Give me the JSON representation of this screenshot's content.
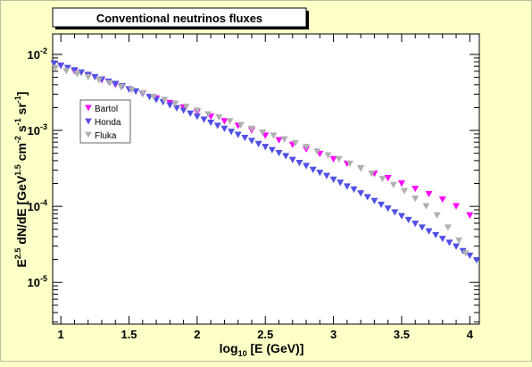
{
  "chart_data": {
    "type": "scatter",
    "title": "Conventional neutrinos fluxes",
    "xlabel": {
      "pre": "log",
      "sub": "10",
      "post": " [E (GeV)]"
    },
    "ylabel": {
      "parts": [
        {
          "t": "E",
          "s": "n"
        },
        {
          "t": "2.5",
          "s": "sup"
        },
        {
          "t": " dN/dE [GeV",
          "s": "n"
        },
        {
          "t": "1.5",
          "s": "sup"
        },
        {
          "t": " cm",
          "s": "n"
        },
        {
          "t": "-2",
          "s": "sup"
        },
        {
          "t": " s",
          "s": "n"
        },
        {
          "t": "-1",
          "s": "sup"
        },
        {
          "t": " sr",
          "s": "n"
        },
        {
          "t": "-1",
          "s": "sup"
        },
        {
          "t": "]",
          "s": "n"
        }
      ]
    },
    "xlim": [
      0.94,
      4.07
    ],
    "ylim_log10": [
      -5.55,
      -1.73
    ],
    "y_scale": "log",
    "xticks": [
      {
        "v": 1,
        "label": "1"
      },
      {
        "v": 1.5,
        "label": "1.5"
      },
      {
        "v": 2,
        "label": "2"
      },
      {
        "v": 2.5,
        "label": "2.5"
      },
      {
        "v": 3,
        "label": "3"
      },
      {
        "v": 3.5,
        "label": "3.5"
      },
      {
        "v": 4,
        "label": "4"
      }
    ],
    "yticks": [
      {
        "exp": -2,
        "base": "10",
        "sup": "-2"
      },
      {
        "exp": -3,
        "base": "10",
        "sup": "-3"
      },
      {
        "exp": -4,
        "base": "10",
        "sup": "-4"
      },
      {
        "exp": -5,
        "base": "10",
        "sup": "-5"
      }
    ],
    "legend_position": "upper-left inside plot",
    "grid": false,
    "marker": "downward-triangle",
    "series": [
      {
        "name": "Bartol",
        "color": "#ff00ff",
        "x": [
          1.0,
          1.1,
          1.2,
          1.3,
          1.4,
          1.5,
          1.6,
          1.7,
          1.8,
          1.9,
          2.0,
          2.1,
          2.2,
          2.3,
          2.4,
          2.5,
          2.6,
          2.7,
          2.8,
          2.9,
          3.0,
          3.1,
          3.2,
          3.3,
          3.4,
          3.5,
          3.6,
          3.7,
          3.8,
          3.9,
          4.0
        ],
        "log10y": [
          -2.15,
          -2.22,
          -2.28,
          -2.34,
          -2.4,
          -2.46,
          -2.52,
          -2.58,
          -2.64,
          -2.7,
          -2.76,
          -2.82,
          -2.88,
          -2.94,
          -3.0,
          -3.07,
          -3.13,
          -3.19,
          -3.25,
          -3.31,
          -3.38,
          -3.44,
          -3.5,
          -3.57,
          -3.63,
          -3.7,
          -3.77,
          -3.84,
          -3.91,
          -4.0,
          -4.12
        ]
      },
      {
        "name": "Honda",
        "color": "#5050e6",
        "x": [
          0.95,
          1.0,
          1.05,
          1.1,
          1.15,
          1.2,
          1.25,
          1.3,
          1.35,
          1.4,
          1.45,
          1.5,
          1.55,
          1.6,
          1.65,
          1.7,
          1.75,
          1.8,
          1.85,
          1.9,
          1.95,
          2.0,
          2.05,
          2.1,
          2.15,
          2.2,
          2.25,
          2.3,
          2.35,
          2.4,
          2.45,
          2.5,
          2.55,
          2.6,
          2.65,
          2.7,
          2.75,
          2.8,
          2.85,
          2.9,
          2.95,
          3.0,
          3.05,
          3.1,
          3.15,
          3.2,
          3.25,
          3.3,
          3.35,
          3.4,
          3.45,
          3.5,
          3.55,
          3.6,
          3.65,
          3.7,
          3.75,
          3.8,
          3.85,
          3.9,
          3.95,
          4.0,
          4.05
        ],
        "log10y": [
          -2.12,
          -2.15,
          -2.18,
          -2.21,
          -2.24,
          -2.27,
          -2.3,
          -2.33,
          -2.36,
          -2.39,
          -2.42,
          -2.46,
          -2.49,
          -2.52,
          -2.56,
          -2.6,
          -2.63,
          -2.67,
          -2.71,
          -2.74,
          -2.78,
          -2.82,
          -2.86,
          -2.9,
          -2.94,
          -2.98,
          -3.02,
          -3.06,
          -3.1,
          -3.14,
          -3.18,
          -3.22,
          -3.26,
          -3.3,
          -3.34,
          -3.39,
          -3.43,
          -3.47,
          -3.52,
          -3.56,
          -3.6,
          -3.65,
          -3.69,
          -3.74,
          -3.78,
          -3.83,
          -3.88,
          -3.93,
          -3.98,
          -4.03,
          -4.08,
          -4.13,
          -4.18,
          -4.23,
          -4.28,
          -4.33,
          -4.38,
          -4.43,
          -4.48,
          -4.53,
          -4.59,
          -4.65,
          -4.71
        ]
      },
      {
        "name": "Fluka",
        "color": "#b0b0b0",
        "x": [
          0.96,
          1.04,
          1.12,
          1.2,
          1.28,
          1.36,
          1.44,
          1.52,
          1.6,
          1.68,
          1.76,
          1.84,
          1.92,
          2.0,
          2.08,
          2.16,
          2.24,
          2.32,
          2.4,
          2.48,
          2.56,
          2.64,
          2.72,
          2.8,
          2.88,
          2.96,
          3.04,
          3.12,
          3.2,
          3.28,
          3.36,
          3.44,
          3.52,
          3.6,
          3.68,
          3.76,
          3.84,
          3.92,
          3.97
        ],
        "log10y": [
          -2.18,
          -2.22,
          -2.26,
          -2.3,
          -2.34,
          -2.38,
          -2.43,
          -2.47,
          -2.51,
          -2.56,
          -2.6,
          -2.65,
          -2.69,
          -2.74,
          -2.79,
          -2.83,
          -2.88,
          -2.93,
          -2.98,
          -3.03,
          -3.07,
          -3.12,
          -3.17,
          -3.22,
          -3.28,
          -3.33,
          -3.38,
          -3.44,
          -3.5,
          -3.57,
          -3.64,
          -3.72,
          -3.8,
          -3.9,
          -4.0,
          -4.12,
          -4.28,
          -4.45,
          -4.62
        ]
      }
    ]
  }
}
